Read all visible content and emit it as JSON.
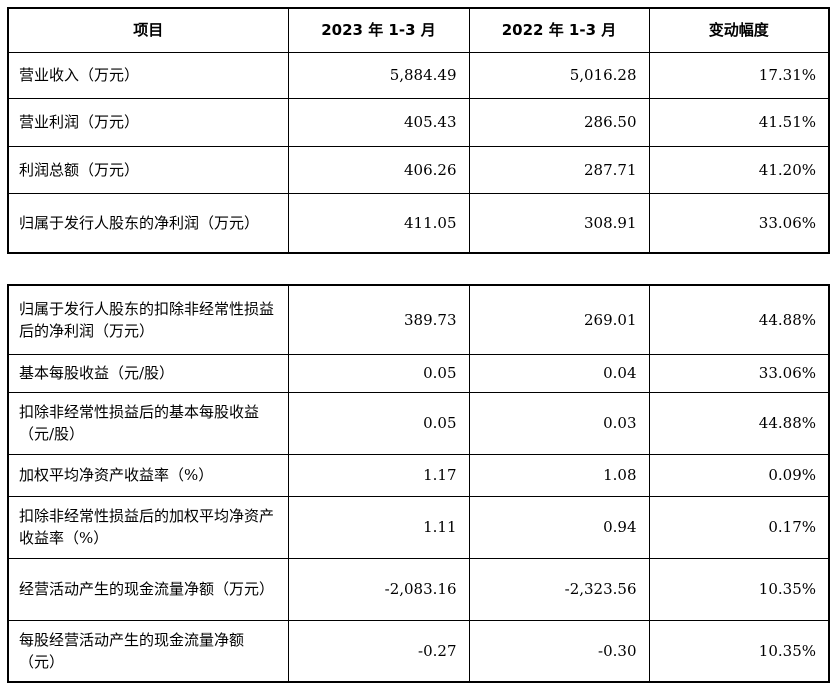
{
  "header": {
    "col1": "项目",
    "col2": "2023 年 1-3 月",
    "col3": "2022 年 1-3 月",
    "col4": "变动幅度"
  },
  "table1": {
    "rows": [
      {
        "label": "营业收入（万元）",
        "v2023": "5,884.49",
        "v2022": "5,016.28",
        "change": "17.31%"
      },
      {
        "label": "营业利润（万元）",
        "v2023": "405.43",
        "v2022": "286.50",
        "change": "41.51%"
      },
      {
        "label": "利润总额（万元）",
        "v2023": "406.26",
        "v2022": "287.71",
        "change": "41.20%"
      },
      {
        "label": "归属于发行人股东的净利润（万元）",
        "v2023": "411.05",
        "v2022": "308.91",
        "change": "33.06%"
      }
    ]
  },
  "table2": {
    "rows": [
      {
        "label": "归属于发行人股东的扣除非经常性损益后的净利润（万元）",
        "v2023": "389.73",
        "v2022": "269.01",
        "change": "44.88%"
      },
      {
        "label": "基本每股收益（元/股）",
        "v2023": "0.05",
        "v2022": "0.04",
        "change": "33.06%"
      },
      {
        "label": "扣除非经常性损益后的基本每股收益（元/股）",
        "v2023": "0.05",
        "v2022": "0.03",
        "change": "44.88%"
      },
      {
        "label": "加权平均净资产收益率（%）",
        "v2023": "1.17",
        "v2022": "1.08",
        "change": "0.09%"
      },
      {
        "label": "扣除非经常性损益后的加权平均净资产收益率（%）",
        "v2023": "1.11",
        "v2022": "0.94",
        "change": "0.17%"
      },
      {
        "label": "经营活动产生的现金流量净额（万元）",
        "v2023": "-2,083.16",
        "v2022": "-2,323.56",
        "change": "10.35%"
      },
      {
        "label": "每股经营活动产生的现金流量净额（元）",
        "v2023": "-0.27",
        "v2022": "-0.30",
        "change": "10.35%"
      }
    ]
  }
}
